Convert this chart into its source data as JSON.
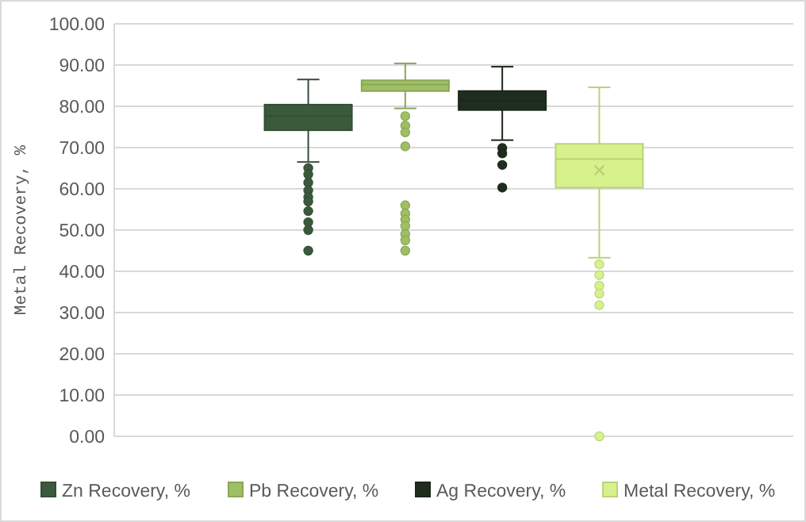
{
  "chart_data": {
    "type": "box",
    "ylabel": "Metal Recovery, %",
    "categories": [
      null
    ],
    "ylim": [
      0,
      100
    ],
    "yticks": [
      {
        "value": 0,
        "label": "0.00"
      },
      {
        "value": 10,
        "label": "10.00"
      },
      {
        "value": 20,
        "label": "20.00"
      },
      {
        "value": 30,
        "label": "30.00"
      },
      {
        "value": 40,
        "label": "40.00"
      },
      {
        "value": 50,
        "label": "50.00"
      },
      {
        "value": 60,
        "label": "60.00"
      },
      {
        "value": 70,
        "label": "70.00"
      },
      {
        "value": 80,
        "label": "80.00"
      },
      {
        "value": 90,
        "label": "90.00"
      },
      {
        "value": 100,
        "label": "100.00"
      }
    ],
    "grid": "y",
    "legend": "bottom",
    "series": [
      {
        "name": "Zn Recovery, %",
        "color": "#3b5a3c",
        "boxes": [
          {
            "low": 66.5,
            "q1": 74.2,
            "median": 77.7,
            "q3": 80.4,
            "high": 86.5,
            "outliers": [
              65,
              63.5,
              61.5,
              59.6,
              58,
              56.9,
              54.6,
              51.9,
              50,
              45
            ]
          }
        ]
      },
      {
        "name": "Pb Recovery, %",
        "color": "#9fbf63",
        "boxes": [
          {
            "low": 79.5,
            "q1": 83.7,
            "median": 85.3,
            "q3": 86.3,
            "high": 90.4,
            "outliers": [
              77.6,
              75.3,
              73.7,
              70.3,
              56,
              54,
              52.5,
              51,
              49,
              47.5,
              45
            ]
          }
        ]
      },
      {
        "name": "Ag Recovery, %",
        "color": "#1f2d1f",
        "boxes": [
          {
            "low": 71.8,
            "q1": 79.1,
            "median": 81.4,
            "q3": 83.7,
            "high": 89.6,
            "outliers": [
              69.9,
              68.6,
              65.8,
              60.3
            ]
          }
        ]
      },
      {
        "name": "Metal Recovery, %",
        "color": "#d7f28c",
        "boxes": [
          {
            "low": 43.3,
            "q1": 60.3,
            "median": 67.2,
            "q3": 70.9,
            "high": 84.6,
            "mean": 64.5,
            "outliers": [
              41.7,
              39.1,
              36.5,
              34.6,
              31.8,
              0
            ]
          }
        ]
      }
    ]
  }
}
